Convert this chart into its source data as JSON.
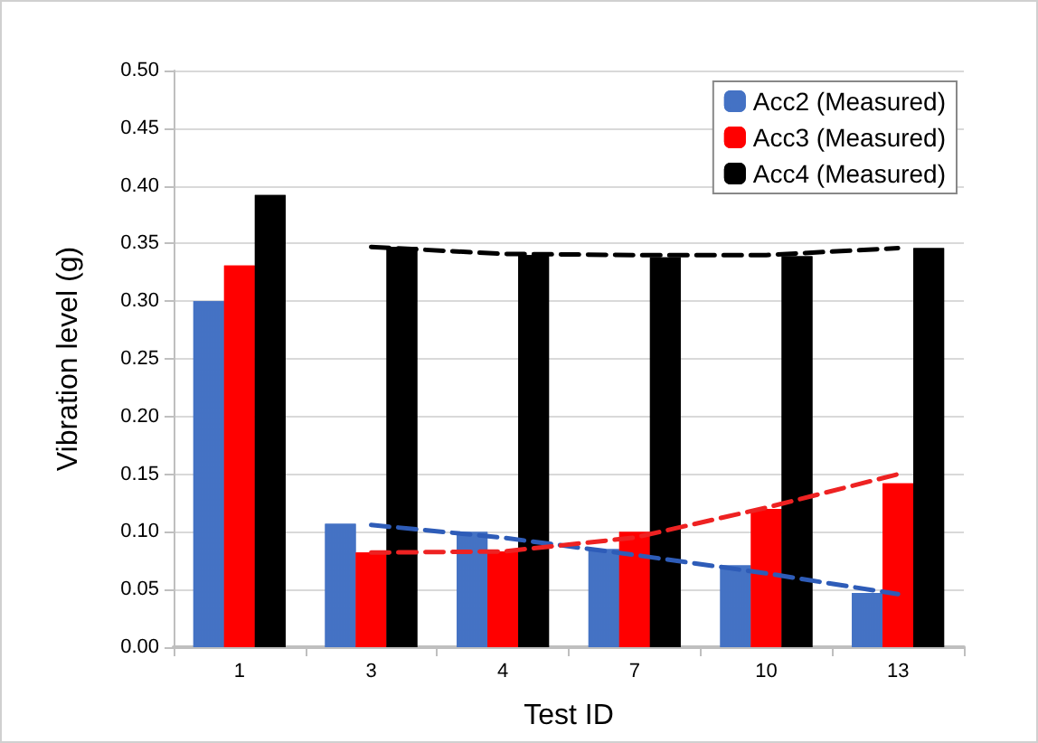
{
  "chart_data": {
    "type": "bar",
    "xlabel": "Test ID",
    "ylabel": "Vibration level (g)",
    "categories": [
      "1",
      "3",
      "4",
      "7",
      "10",
      "13"
    ],
    "series": [
      {
        "name": "Acc2 (Measured)",
        "color": "#4472c4",
        "values": [
          0.3,
          0.107,
          0.1,
          0.085,
          0.071,
          0.047
        ]
      },
      {
        "name": "Acc3 (Measured)",
        "color": "#ff0000",
        "values": [
          0.331,
          0.082,
          0.083,
          0.1,
          0.12,
          0.142
        ]
      },
      {
        "name": "Acc4 (Measured)",
        "color": "#000000",
        "values": [
          0.392,
          0.347,
          0.34,
          0.338,
          0.339,
          0.346
        ]
      },
      {
        "type": "line",
        "color": "#2e5cb8",
        "line_style": "dashed",
        "x": [
          "3",
          "4",
          "7",
          "10",
          "13"
        ],
        "values": [
          0.106,
          0.095,
          0.08,
          0.064,
          0.046
        ]
      },
      {
        "type": "line",
        "color": "#ee2222",
        "line_style": "dashed",
        "x": [
          "3",
          "4",
          "7",
          "10",
          "13"
        ],
        "values": [
          0.082,
          0.083,
          0.095,
          0.121,
          0.15
        ]
      },
      {
        "type": "line",
        "color": "#000000",
        "line_style": "dashed",
        "x": [
          "3",
          "4",
          "7",
          "10",
          "13"
        ],
        "values": [
          0.347,
          0.341,
          0.34,
          0.34,
          0.346
        ]
      }
    ],
    "ylim": [
      0,
      0.5
    ],
    "yticks": [
      {
        "value": 0,
        "label": "0.00"
      },
      {
        "value": 0.05,
        "label": "0.05"
      },
      {
        "value": 0.1,
        "label": "0.10"
      },
      {
        "value": 0.15,
        "label": "0.15"
      },
      {
        "value": 0.2,
        "label": "0.20"
      },
      {
        "value": 0.25,
        "label": "0.25"
      },
      {
        "value": 0.3,
        "label": "0.30"
      },
      {
        "value": 0.35,
        "label": "0.35"
      },
      {
        "value": 0.4,
        "label": "0.40"
      },
      {
        "value": 0.45,
        "label": "0.45"
      },
      {
        "value": 0.5,
        "label": "0.50"
      }
    ],
    "grid": "y",
    "legend": "top right",
    "marker": "none"
  }
}
